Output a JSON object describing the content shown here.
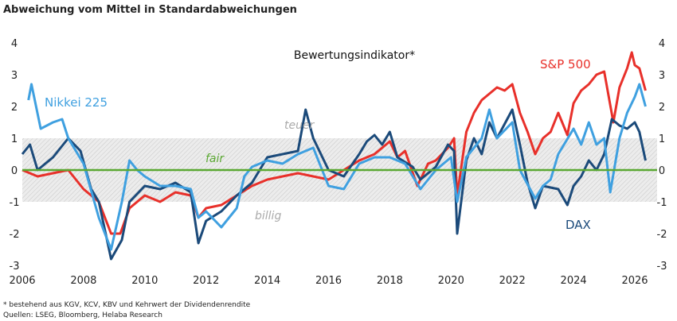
{
  "chart_data": {
    "type": "line",
    "title": "Abweichung vom Mittel in Standardabweichungen",
    "subtitle": "Bewertungsindikator*",
    "xlim": [
      2006,
      2026.9
    ],
    "ylim": [
      -3,
      4
    ],
    "x_ticks": [
      "2006",
      "2008",
      "2010",
      "2012",
      "2014",
      "2016",
      "2018",
      "2020",
      "2022",
      "2024",
      "2026"
    ],
    "y_ticks": [
      "-3",
      "-2",
      "-1",
      "0",
      "1",
      "2",
      "3",
      "4"
    ],
    "band": {
      "range": [
        -1,
        1
      ],
      "labels": {
        "upper": "teuer",
        "middle": "fair",
        "lower": "billig"
      }
    },
    "zero_line_color": "#5aa832",
    "series": [
      {
        "name": "S&P 500",
        "color": "#e8302a",
        "points": [
          [
            2006,
            0
          ],
          [
            2006.5,
            -0.2
          ],
          [
            2007,
            -0.1
          ],
          [
            2007.5,
            0
          ],
          [
            2008,
            -0.6
          ],
          [
            2008.5,
            -1.0
          ],
          [
            2008.9,
            -2.0
          ],
          [
            2009.2,
            -2.0
          ],
          [
            2009.5,
            -1.2
          ],
          [
            2010,
            -0.8
          ],
          [
            2010.5,
            -1.0
          ],
          [
            2011,
            -0.7
          ],
          [
            2011.5,
            -0.8
          ],
          [
            2011.75,
            -1.5
          ],
          [
            2012,
            -1.2
          ],
          [
            2012.5,
            -1.1
          ],
          [
            2013,
            -0.8
          ],
          [
            2013.5,
            -0.5
          ],
          [
            2014,
            -0.3
          ],
          [
            2014.5,
            -0.2
          ],
          [
            2015,
            -0.1
          ],
          [
            2015.5,
            -0.2
          ],
          [
            2016,
            -0.3
          ],
          [
            2016.5,
            0
          ],
          [
            2017,
            0.3
          ],
          [
            2017.5,
            0.5
          ],
          [
            2018,
            0.9
          ],
          [
            2018.25,
            0.4
          ],
          [
            2018.5,
            0.6
          ],
          [
            2018.9,
            -0.5
          ],
          [
            2019.25,
            0.2
          ],
          [
            2019.5,
            0.3
          ],
          [
            2019.9,
            0.7
          ],
          [
            2020.1,
            1.0
          ],
          [
            2020.2,
            -0.8
          ],
          [
            2020.5,
            1.2
          ],
          [
            2020.75,
            1.8
          ],
          [
            2021,
            2.2
          ],
          [
            2021.25,
            2.4
          ],
          [
            2021.5,
            2.6
          ],
          [
            2021.75,
            2.5
          ],
          [
            2022,
            2.7
          ],
          [
            2022.25,
            1.8
          ],
          [
            2022.5,
            1.2
          ],
          [
            2022.75,
            0.5
          ],
          [
            2023,
            1.0
          ],
          [
            2023.25,
            1.2
          ],
          [
            2023.5,
            1.8
          ],
          [
            2023.8,
            1.1
          ],
          [
            2024,
            2.1
          ],
          [
            2024.25,
            2.5
          ],
          [
            2024.5,
            2.7
          ],
          [
            2024.75,
            3.0
          ],
          [
            2025,
            3.1
          ],
          [
            2025.3,
            1.5
          ],
          [
            2025.5,
            2.6
          ],
          [
            2025.75,
            3.2
          ],
          [
            2025.9,
            3.7
          ],
          [
            2026,
            3.3
          ],
          [
            2026.15,
            3.2
          ],
          [
            2026.35,
            2.5
          ]
        ]
      },
      {
        "name": "DAX",
        "color": "#1b4a7a",
        "points": [
          [
            2006,
            0.5
          ],
          [
            2006.25,
            0.8
          ],
          [
            2006.5,
            0
          ],
          [
            2007,
            0.4
          ],
          [
            2007.5,
            1.0
          ],
          [
            2007.9,
            0.6
          ],
          [
            2008.25,
            -0.6
          ],
          [
            2008.5,
            -1.0
          ],
          [
            2008.9,
            -2.8
          ],
          [
            2009.25,
            -2.2
          ],
          [
            2009.5,
            -1.0
          ],
          [
            2010,
            -0.5
          ],
          [
            2010.5,
            -0.6
          ],
          [
            2011,
            -0.4
          ],
          [
            2011.5,
            -0.7
          ],
          [
            2011.75,
            -2.3
          ],
          [
            2012,
            -1.6
          ],
          [
            2012.5,
            -1.3
          ],
          [
            2013,
            -0.8
          ],
          [
            2013.5,
            -0.4
          ],
          [
            2014,
            0.4
          ],
          [
            2014.5,
            0.5
          ],
          [
            2015,
            0.6
          ],
          [
            2015.25,
            1.9
          ],
          [
            2015.5,
            1.0
          ],
          [
            2015.75,
            0.5
          ],
          [
            2016,
            0
          ],
          [
            2016.5,
            -0.2
          ],
          [
            2017,
            0.5
          ],
          [
            2017.25,
            0.9
          ],
          [
            2017.5,
            1.1
          ],
          [
            2017.75,
            0.8
          ],
          [
            2018,
            1.2
          ],
          [
            2018.25,
            0.4
          ],
          [
            2018.75,
            0.1
          ],
          [
            2019,
            -0.3
          ],
          [
            2019.5,
            0.1
          ],
          [
            2019.9,
            0.8
          ],
          [
            2020.1,
            0.6
          ],
          [
            2020.2,
            -2.0
          ],
          [
            2020.5,
            0.3
          ],
          [
            2020.75,
            1.0
          ],
          [
            2021,
            0.5
          ],
          [
            2021.25,
            1.5
          ],
          [
            2021.5,
            1.0
          ],
          [
            2022,
            1.9
          ],
          [
            2022.25,
            0.8
          ],
          [
            2022.5,
            -0.4
          ],
          [
            2022.75,
            -1.2
          ],
          [
            2023,
            -0.5
          ],
          [
            2023.5,
            -0.6
          ],
          [
            2023.8,
            -1.1
          ],
          [
            2024,
            -0.5
          ],
          [
            2024.25,
            -0.2
          ],
          [
            2024.5,
            0.3
          ],
          [
            2024.75,
            0
          ],
          [
            2025,
            0.5
          ],
          [
            2025.25,
            1.6
          ],
          [
            2025.5,
            1.4
          ],
          [
            2025.75,
            1.3
          ],
          [
            2026,
            1.5
          ],
          [
            2026.15,
            1.2
          ],
          [
            2026.35,
            0.3
          ]
        ]
      },
      {
        "name": "Nikkei 225",
        "color": "#3fa0e0",
        "points": [
          [
            2006.2,
            2.2
          ],
          [
            2006.3,
            2.7
          ],
          [
            2006.6,
            1.3
          ],
          [
            2007,
            1.5
          ],
          [
            2007.3,
            1.6
          ],
          [
            2007.5,
            1.0
          ],
          [
            2008,
            0.2
          ],
          [
            2008.5,
            -1.5
          ],
          [
            2008.9,
            -2.5
          ],
          [
            2009.25,
            -1.0
          ],
          [
            2009.5,
            0.3
          ],
          [
            2009.75,
            0
          ],
          [
            2010,
            -0.2
          ],
          [
            2010.5,
            -0.5
          ],
          [
            2011,
            -0.5
          ],
          [
            2011.5,
            -0.6
          ],
          [
            2011.75,
            -1.5
          ],
          [
            2012,
            -1.3
          ],
          [
            2012.5,
            -1.8
          ],
          [
            2013,
            -1.2
          ],
          [
            2013.25,
            -0.2
          ],
          [
            2013.5,
            0.1
          ],
          [
            2014,
            0.3
          ],
          [
            2014.5,
            0.2
          ],
          [
            2015,
            0.5
          ],
          [
            2015.5,
            0.7
          ],
          [
            2016,
            -0.5
          ],
          [
            2016.5,
            -0.6
          ],
          [
            2017,
            0.2
          ],
          [
            2017.5,
            0.4
          ],
          [
            2018,
            0.4
          ],
          [
            2018.5,
            0.2
          ],
          [
            2019,
            -0.6
          ],
          [
            2019.5,
            0
          ],
          [
            2020,
            0.4
          ],
          [
            2020.2,
            -1.0
          ],
          [
            2020.5,
            0.4
          ],
          [
            2021,
            1.0
          ],
          [
            2021.25,
            1.9
          ],
          [
            2021.5,
            1.0
          ],
          [
            2022,
            1.5
          ],
          [
            2022.25,
            0
          ],
          [
            2022.75,
            -0.9
          ],
          [
            2023,
            -0.5
          ],
          [
            2023.25,
            -0.3
          ],
          [
            2023.5,
            0.5
          ],
          [
            2024,
            1.3
          ],
          [
            2024.25,
            0.8
          ],
          [
            2024.5,
            1.5
          ],
          [
            2024.75,
            0.8
          ],
          [
            2025,
            1.0
          ],
          [
            2025.2,
            -0.7
          ],
          [
            2025.5,
            1.0
          ],
          [
            2025.75,
            1.8
          ],
          [
            2026,
            2.3
          ],
          [
            2026.15,
            2.7
          ],
          [
            2026.35,
            2.0
          ]
        ]
      }
    ],
    "footnotes": [
      "* bestehend aus KGV, KCV, KBV und Kehrwert der Dividendenrendite",
      "Quellen: LSEG, Bloomberg, Helaba Research"
    ]
  }
}
